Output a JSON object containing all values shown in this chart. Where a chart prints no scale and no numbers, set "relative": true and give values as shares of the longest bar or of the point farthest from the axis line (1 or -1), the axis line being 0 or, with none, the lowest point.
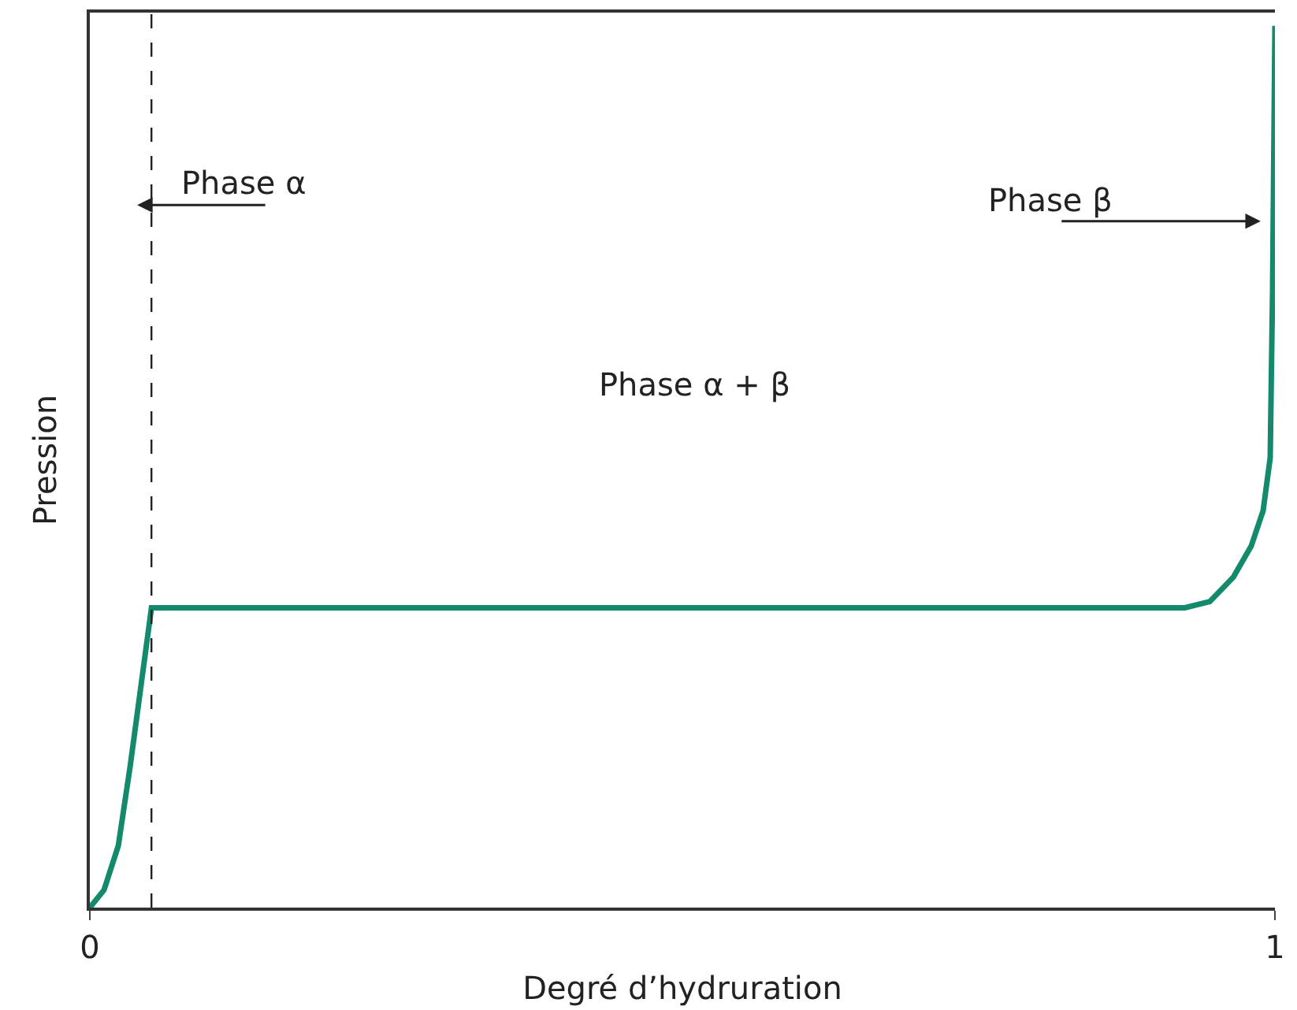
{
  "chart_data": {
    "type": "line",
    "relative": true,
    "xlabel": "Degré d’hydruration",
    "ylabel": "Pression",
    "x": [
      0,
      0.012,
      0.024,
      0.034,
      0.043,
      0.048,
      0.052,
      0.924,
      0.945,
      0.965,
      0.98,
      0.99,
      0.996,
      0.998,
      1.0
    ],
    "values": [
      0,
      0.02,
      0.07,
      0.16,
      0.25,
      0.3,
      0.34,
      0.34,
      0.347,
      0.375,
      0.41,
      0.45,
      0.51,
      0.7,
      1
    ],
    "color": "#138a6b",
    "marker": "none",
    "line_style": "solid",
    "legend": false,
    "xlim": [
      0,
      1
    ],
    "xticks": [
      0,
      1
    ],
    "ref_lines": [
      {
        "axis": "x",
        "value": 0.052,
        "color": "#222222",
        "line_style": "dashed"
      }
    ],
    "annotations": [
      "Phase α",
      "Phase β",
      "Phase α + β"
    ]
  }
}
